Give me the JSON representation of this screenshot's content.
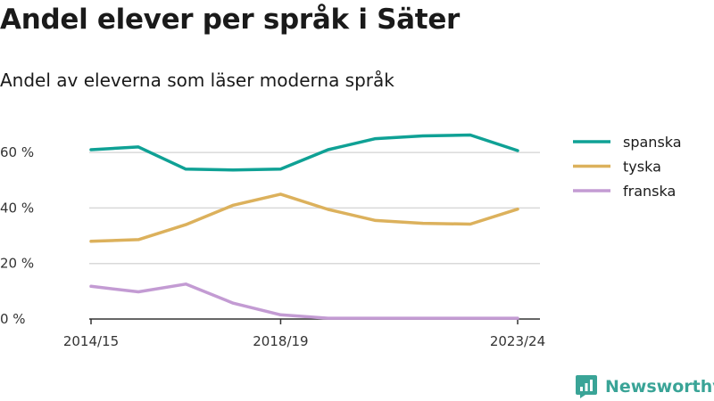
{
  "title": "Andel elever per språk i Säter",
  "subtitle": "Andel av eleverna som läser moderna språk",
  "brand": {
    "name": "Newsworthy",
    "icon": "newsworthy-logo-icon",
    "color": "#3aa497"
  },
  "chart_data": {
    "type": "line",
    "title": "Andel elever per språk i Säter",
    "subtitle": "Andel av eleverna som läser moderna språk",
    "x": [
      "2014/15",
      "2015/16",
      "2016/17",
      "2017/18",
      "2018/19",
      "2019/20",
      "2020/21",
      "2021/22",
      "2022/23",
      "2023/24"
    ],
    "x_tick_labels": [
      "2014/15",
      "2018/19",
      "2023/24"
    ],
    "ylim": [
      0,
      70
    ],
    "y_ticks": [
      0,
      20,
      40,
      60
    ],
    "y_tick_labels": [
      "0 %",
      "20 %",
      "40 %",
      "60 %"
    ],
    "grid": true,
    "legend_position": "right",
    "series": [
      {
        "name": "spanska",
        "color": "#0fa195",
        "values": [
          61,
          62,
          54,
          53.7,
          54,
          61,
          65,
          66,
          66.3,
          60.7
        ]
      },
      {
        "name": "tyska",
        "color": "#dcb15c",
        "values": [
          28,
          28.6,
          34,
          41,
          45,
          39.5,
          35.5,
          34.5,
          34.2,
          39.6
        ]
      },
      {
        "name": "franska",
        "color": "#c39bd3",
        "values": [
          11.8,
          9.8,
          12.6,
          5.7,
          1.5,
          0.3,
          0.3,
          0.3,
          0.3,
          0.3
        ]
      }
    ]
  }
}
